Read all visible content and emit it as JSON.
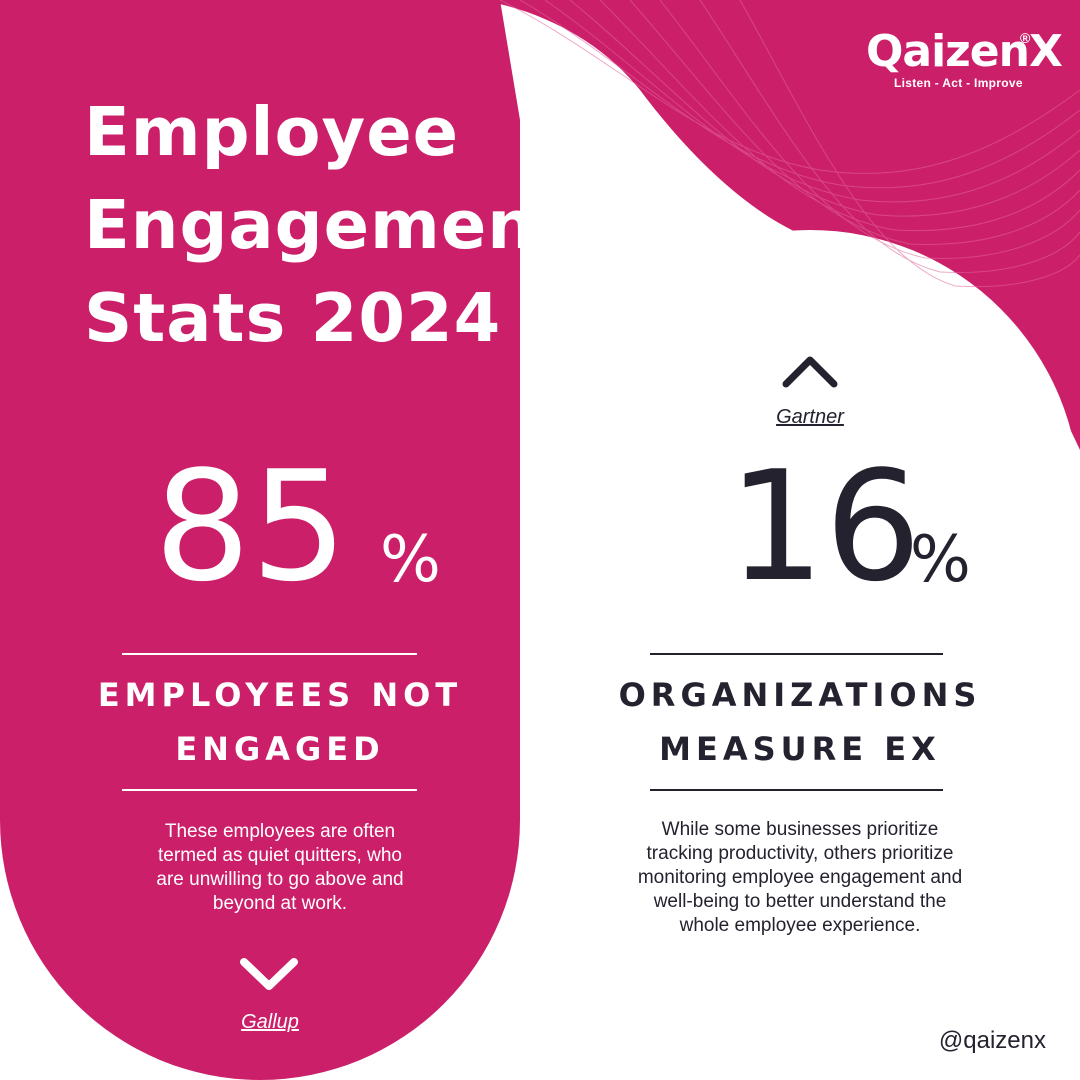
{
  "colors": {
    "brand_pink": "#cc1f69",
    "text_dark": "#23222e",
    "white": "#ffffff"
  },
  "brand": {
    "name": "QaizenX",
    "registered": "®",
    "tagline": "Listen - Act - Improve"
  },
  "title_lines": [
    "Employee",
    "Engagement",
    "Stats 2024"
  ],
  "stats": [
    {
      "value": "85",
      "unit": "%",
      "label_lines": [
        "EMPLOYEES NOT",
        "ENGAGED"
      ],
      "description_lines": [
        "These employees are often",
        "termed as quiet quitters, who",
        "are unwilling to go above and",
        "beyond at work."
      ],
      "source": "Gallup",
      "icon": "chevron-down-icon"
    },
    {
      "value": "16",
      "unit": "%",
      "label_lines": [
        "ORGANIZATIONS",
        "MEASURE EX"
      ],
      "description_lines": [
        "While some businesses prioritize",
        "tracking productivity, others prioritize",
        "monitoring employee engagement and",
        "well-being to better understand the",
        "whole employee experience."
      ],
      "source": "Gartner",
      "icon": "chevron-up-icon"
    }
  ],
  "footer": {
    "handle": "@qaizenx"
  }
}
